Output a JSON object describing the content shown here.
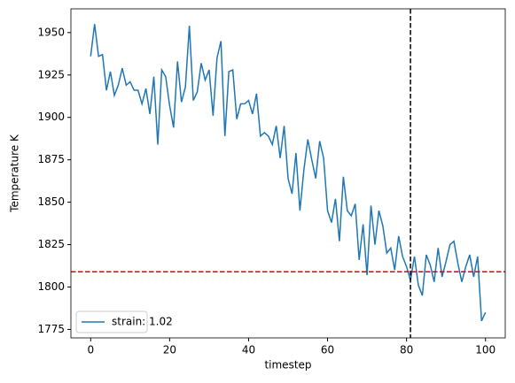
{
  "chart_data": {
    "type": "line",
    "xlabel": "timestep",
    "ylabel": "Temperature K",
    "x": [
      0,
      1,
      2,
      3,
      4,
      5,
      6,
      7,
      8,
      9,
      10,
      11,
      12,
      13,
      14,
      15,
      16,
      17,
      18,
      19,
      20,
      21,
      22,
      23,
      24,
      25,
      26,
      27,
      28,
      29,
      30,
      31,
      32,
      33,
      34,
      35,
      36,
      37,
      38,
      39,
      40,
      41,
      42,
      43,
      44,
      45,
      46,
      47,
      48,
      49,
      50,
      51,
      52,
      53,
      54,
      55,
      56,
      57,
      58,
      59,
      60,
      61,
      62,
      63,
      64,
      65,
      66,
      67,
      68,
      69,
      70,
      71,
      72,
      73,
      74,
      75,
      76,
      77,
      78,
      79,
      80,
      81,
      82,
      83,
      84,
      85,
      86,
      87,
      88,
      89,
      90,
      91,
      92,
      93,
      94,
      95,
      96,
      97,
      98,
      99,
      100
    ],
    "series": [
      {
        "name": "strain: 1.02",
        "color": "#1f77b4",
        "values": [
          1936,
          1955,
          1936,
          1937,
          1916,
          1927,
          1913,
          1919,
          1929,
          1919,
          1921,
          1916,
          1916,
          1908,
          1917,
          1902,
          1924,
          1884,
          1928,
          1924,
          1907,
          1894,
          1933,
          1909,
          1918,
          1954,
          1910,
          1915,
          1932,
          1922,
          1928,
          1901,
          1935,
          1945,
          1889,
          1927,
          1928,
          1899,
          1908,
          1908,
          1910,
          1902,
          1914,
          1889,
          1891,
          1889,
          1884,
          1895,
          1876,
          1895,
          1864,
          1855,
          1879,
          1845,
          1869,
          1887,
          1875,
          1864,
          1886,
          1876,
          1845,
          1838,
          1852,
          1827,
          1865,
          1845,
          1842,
          1849,
          1816,
          1837,
          1807,
          1848,
          1825,
          1845,
          1836,
          1820,
          1823,
          1810,
          1830,
          1818,
          1812,
          1804,
          1818,
          1801,
          1795,
          1819,
          1813,
          1803,
          1823,
          1806,
          1815,
          1825,
          1827,
          1814,
          1803,
          1812,
          1819,
          1806,
          1818,
          1780,
          1785
        ]
      }
    ],
    "xlim": [
      -5,
      105
    ],
    "xticks": [
      0,
      20,
      40,
      60,
      80,
      100
    ],
    "ylim": [
      1770,
      1964
    ],
    "yticks": [
      1775,
      1800,
      1825,
      1850,
      1875,
      1900,
      1925,
      1950
    ],
    "vline": {
      "x": 81,
      "color": "#000000"
    },
    "hline": {
      "y": 1809,
      "color": "#e00000"
    },
    "legend": "lower left"
  }
}
